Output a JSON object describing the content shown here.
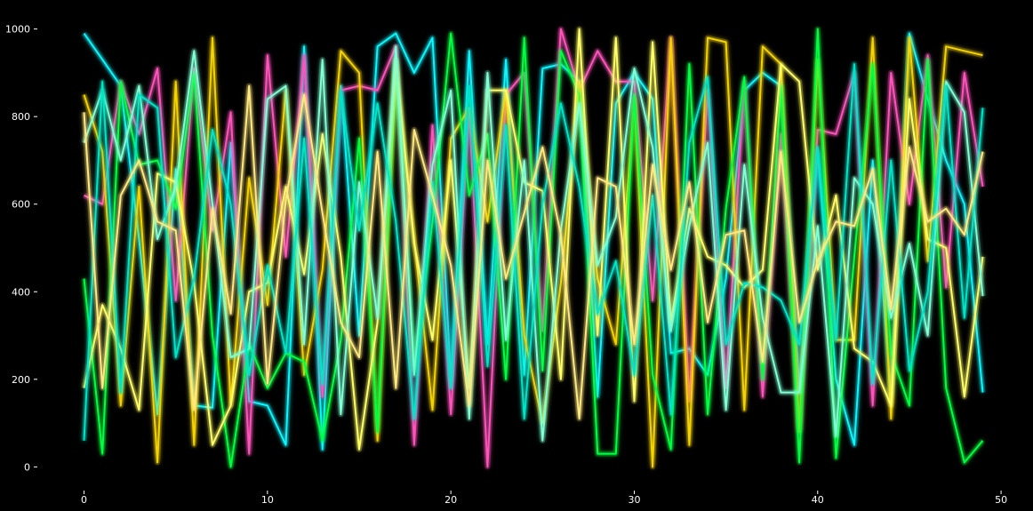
{
  "chart_data": {
    "type": "line",
    "title": "",
    "xlabel": "",
    "ylabel": "",
    "xlim": [
      -2.45,
      51.45
    ],
    "ylim": [
      -50,
      1050
    ],
    "xticks": [
      0,
      10,
      20,
      30,
      40,
      50
    ],
    "yticks": [
      0,
      200,
      400,
      600,
      800,
      1000
    ],
    "grid": false,
    "legend": "none",
    "background": "#000000",
    "palette": [
      "#08F7FE",
      "#FE53BB",
      "#F5D300",
      "#00ff41",
      "#FFFF66",
      "#7FFFD4",
      "#00E5C7",
      "#FFE97F"
    ],
    "x": [
      0,
      1,
      2,
      3,
      4,
      5,
      6,
      7,
      8,
      9,
      10,
      11,
      12,
      13,
      14,
      15,
      16,
      17,
      18,
      19,
      20,
      21,
      22,
      23,
      24,
      25,
      26,
      27,
      28,
      29,
      30,
      31,
      32,
      33,
      34,
      35,
      36,
      37,
      38,
      39,
      40,
      41,
      42,
      43,
      44,
      45,
      46,
      47,
      48,
      49
    ],
    "series": [
      {
        "color": "#08F7FE",
        "values": [
          990,
          930,
          870,
          520,
          120,
          680,
          140,
          135,
          740,
          150,
          140,
          50,
          960,
          40,
          870,
          300,
          960,
          990,
          900,
          980,
          200,
          950,
          280,
          930,
          210,
          910,
          920,
          880,
          160,
          830,
          900,
          840,
          260,
          270,
          210,
          430,
          860,
          900,
          870,
          180,
          720,
          200,
          50,
          700,
          160,
          990,
          840,
          700,
          600,
          170
        ]
      },
      {
        "color": "#FE53BB",
        "values": [
          620,
          600,
          880,
          760,
          910,
          380,
          910,
          540,
          810,
          30,
          940,
          480,
          940,
          160,
          860,
          870,
          860,
          960,
          50,
          780,
          120,
          810,
          0,
          850,
          900,
          310,
          1000,
          860,
          950,
          880,
          880,
          380,
          980,
          150,
          860,
          180,
          880,
          160,
          760,
          80,
          770,
          760,
          900,
          140,
          900,
          600,
          940,
          410,
          900,
          640
        ]
      },
      {
        "color": "#F5D300",
        "values": [
          850,
          720,
          140,
          640,
          10,
          880,
          50,
          980,
          140,
          660,
          370,
          860,
          210,
          450,
          950,
          900,
          60,
          900,
          520,
          130,
          750,
          820,
          560,
          860,
          300,
          100,
          420,
          880,
          430,
          280,
          840,
          0,
          980,
          50,
          980,
          970,
          130,
          960,
          920,
          80,
          930,
          290,
          290,
          980,
          110,
          980,
          470,
          960,
          950,
          940
        ]
      },
      {
        "color": "#00ff41",
        "values": [
          430,
          30,
          880,
          690,
          700,
          590,
          900,
          300,
          0,
          280,
          180,
          260,
          240,
          60,
          290,
          750,
          80,
          930,
          220,
          560,
          990,
          620,
          760,
          200,
          980,
          220,
          950,
          850,
          30,
          30,
          850,
          210,
          40,
          920,
          120,
          590,
          890,
          200,
          870,
          10,
          1000,
          20,
          480,
          920,
          260,
          140,
          930,
          180,
          10,
          60
        ]
      },
      {
        "color": "#FFFF66",
        "values": [
          180,
          370,
          270,
          130,
          670,
          650,
          420,
          50,
          140,
          400,
          420,
          640,
          440,
          760,
          480,
          40,
          330,
          930,
          510,
          290,
          700,
          180,
          860,
          860,
          650,
          630,
          200,
          1000,
          300,
          980,
          150,
          970,
          330,
          590,
          480,
          460,
          410,
          450,
          920,
          880,
          450,
          620,
          270,
          240,
          140,
          840,
          520,
          500,
          160,
          480
        ]
      },
      {
        "color": "#7FFFD4",
        "values": [
          740,
          860,
          700,
          870,
          520,
          640,
          950,
          600,
          250,
          270,
          840,
          870,
          280,
          930,
          120,
          650,
          340,
          960,
          210,
          690,
          860,
          110,
          900,
          290,
          700,
          60,
          540,
          830,
          460,
          570,
          910,
          730,
          310,
          550,
          740,
          130,
          690,
          340,
          170,
          170,
          550,
          70,
          660,
          600,
          340,
          510,
          300,
          880,
          810,
          390
        ]
      },
      {
        "color": "#00E5C7",
        "values": [
          60,
          880,
          170,
          850,
          820,
          250,
          430,
          770,
          600,
          210,
          460,
          260,
          750,
          190,
          860,
          540,
          830,
          560,
          110,
          650,
          180,
          870,
          230,
          780,
          110,
          600,
          830,
          640,
          350,
          470,
          210,
          620,
          120,
          740,
          890,
          280,
          420,
          410,
          380,
          280,
          730,
          290,
          920,
          190,
          700,
          220,
          400,
          870,
          340,
          820
        ]
      },
      {
        "color": "#FFE97F",
        "values": [
          810,
          180,
          620,
          700,
          560,
          540,
          130,
          590,
          350,
          870,
          190,
          610,
          850,
          580,
          330,
          250,
          720,
          180,
          770,
          620,
          460,
          140,
          700,
          430,
          580,
          730,
          530,
          110,
          660,
          640,
          280,
          690,
          450,
          650,
          330,
          530,
          540,
          240,
          720,
          330,
          470,
          560,
          550,
          680,
          360,
          730,
          560,
          590,
          530,
          720
        ]
      }
    ]
  }
}
